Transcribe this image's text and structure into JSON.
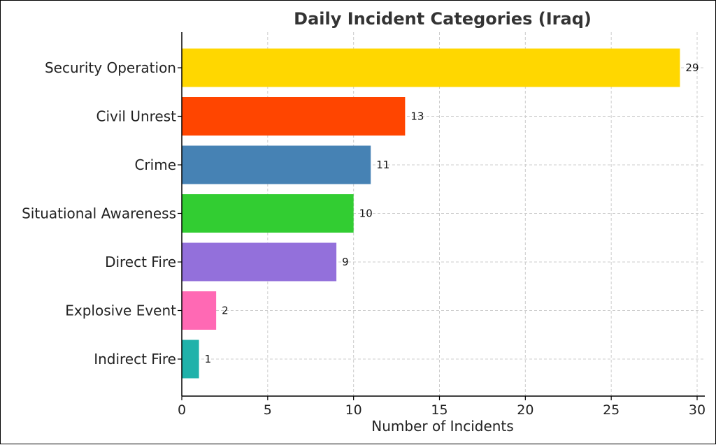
{
  "chart_data": {
    "type": "bar",
    "orientation": "horizontal",
    "title": "Daily Incident Categories (Iraq)",
    "xlabel": "Number of Incidents",
    "ylabel": "",
    "xlim": [
      0,
      30
    ],
    "xticks": [
      0,
      5,
      10,
      15,
      20,
      25,
      30
    ],
    "grid": true,
    "categories": [
      "Security Operation",
      "Civil Unrest",
      "Crime",
      "Situational Awareness",
      "Direct Fire",
      "Explosive Event",
      "Indirect Fire"
    ],
    "values": [
      29,
      13,
      11,
      10,
      9,
      2,
      1
    ],
    "colors": [
      "#FFD700",
      "#FF4500",
      "#4682B4",
      "#32CD32",
      "#9370DB",
      "#FF69B4",
      "#20B2AA"
    ]
  }
}
